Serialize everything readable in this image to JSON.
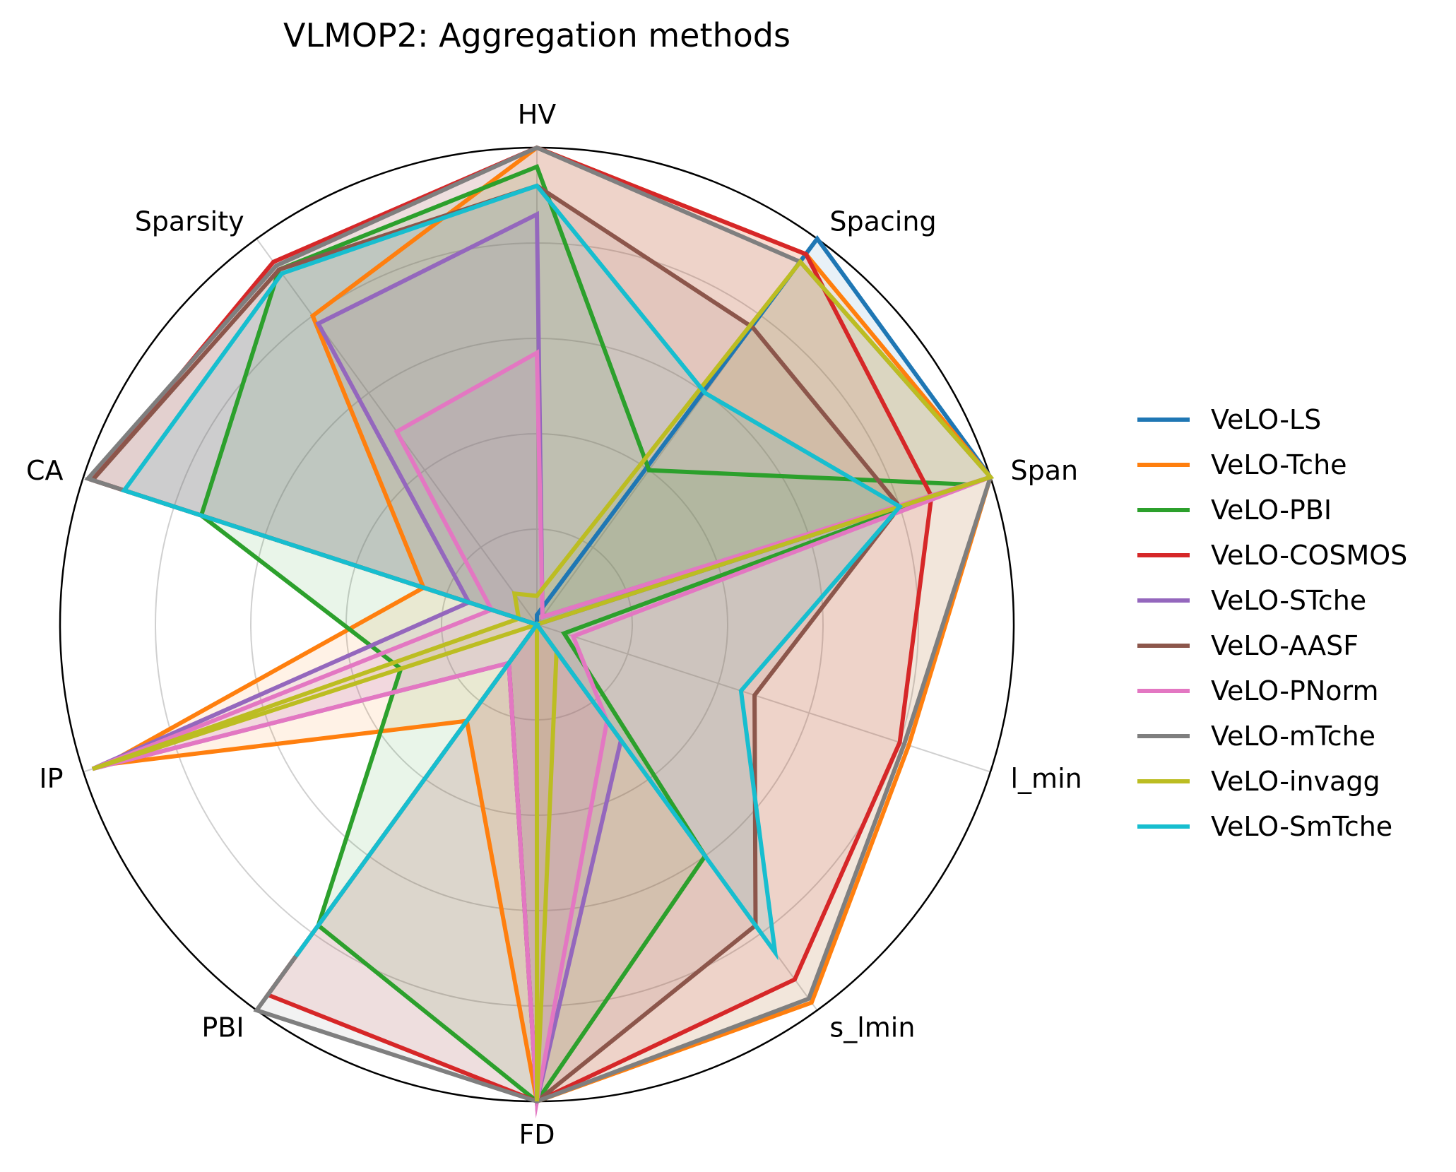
{
  "chart_data": {
    "type": "radar",
    "title": "VLMOP2: Aggregation methods",
    "axes": [
      "HV",
      "Spacing",
      "Span",
      "l_min",
      "s_lmin",
      "FD",
      "PBI",
      "IP",
      "CA",
      "Sparsity"
    ],
    "rlim": [
      0,
      1
    ],
    "grid": true,
    "grid_levels": [
      0.2,
      0.4,
      0.6,
      0.8
    ],
    "legend_position": "right",
    "series": [
      {
        "name": "VeLO-LS",
        "color": "#1f77b4",
        "values": [
          0.02,
          1.0,
          1.0,
          0.0,
          0.0,
          0.02,
          0.0,
          0.02,
          0.0,
          0.0
        ]
      },
      {
        "name": "VeLO-Tche",
        "color": "#ff7f0e",
        "values": [
          1.0,
          0.96,
          1.0,
          0.82,
          0.98,
          1.0,
          0.25,
          0.95,
          0.25,
          0.8
        ]
      },
      {
        "name": "VeLO-PBI",
        "color": "#2ca02c",
        "values": [
          0.96,
          0.4,
          0.95,
          0.06,
          0.6,
          1.0,
          0.78,
          0.3,
          0.74,
          0.92
        ]
      },
      {
        "name": "VeLO-COSMOS",
        "color": "#d62728",
        "values": [
          1.0,
          0.96,
          0.87,
          0.8,
          0.92,
          1.0,
          0.96,
          0.0,
          0.98,
          0.94
        ]
      },
      {
        "name": "VeLO-STche",
        "color": "#9467bd",
        "values": [
          0.86,
          0.02,
          0.95,
          0.0,
          0.3,
          1.0,
          0.1,
          0.98,
          0.15,
          0.78
        ]
      },
      {
        "name": "VeLO-AASF",
        "color": "#8c564b",
        "values": [
          0.92,
          0.77,
          0.8,
          0.48,
          0.78,
          1.0,
          0.1,
          0.0,
          0.98,
          0.92
        ]
      },
      {
        "name": "VeLO-PNorm",
        "color": "#e377c2",
        "values": [
          0.57,
          0.02,
          1.0,
          0.08,
          0.25,
          1.0,
          0.1,
          0.98,
          0.1,
          0.5
        ]
      },
      {
        "name": "VeLO-mTche",
        "color": "#7f7f7f",
        "values": [
          1.0,
          0.94,
          1.0,
          0.81,
          0.97,
          1.0,
          1.0,
          0.0,
          0.99,
          0.93
        ]
      },
      {
        "name": "VeLO-invagg",
        "color": "#bcbd22",
        "values": [
          0.06,
          0.94,
          1.0,
          0.0,
          0.07,
          1.0,
          0.0,
          0.98,
          0.04,
          0.08
        ]
      },
      {
        "name": "VeLO-SmTche",
        "color": "#17becf",
        "values": [
          0.92,
          0.6,
          0.8,
          0.45,
          0.85,
          0.0,
          0.86,
          0.0,
          0.91,
          0.91
        ]
      }
    ]
  }
}
